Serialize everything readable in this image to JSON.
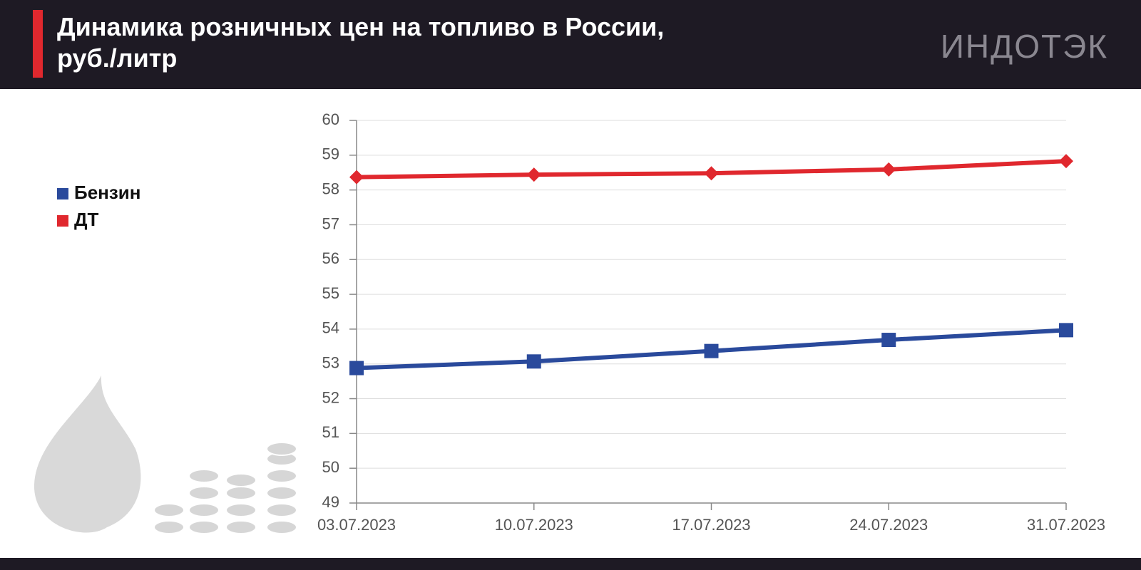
{
  "chart_data": {
    "type": "line",
    "title": "Динамика розничных цен на топливо в России, руб./литр",
    "source": "ИНДОТЭК",
    "categories": [
      "03.07.2023",
      "10.07.2023",
      "17.07.2023",
      "24.07.2023",
      "31.07.2023"
    ],
    "series": [
      {
        "name": "Бензин",
        "color": "#2a4a9c",
        "marker": "square",
        "values": [
          52.88,
          53.07,
          53.37,
          53.69,
          53.97
        ]
      },
      {
        "name": "ДТ",
        "color": "#e0282e",
        "marker": "diamond",
        "values": [
          58.37,
          58.44,
          58.48,
          58.59,
          58.83
        ]
      }
    ],
    "ylim": [
      49,
      60
    ],
    "yticks": [
      49,
      50,
      51,
      52,
      53,
      54,
      55,
      56,
      57,
      58,
      59,
      60
    ],
    "grid": true,
    "legend": "left"
  }
}
